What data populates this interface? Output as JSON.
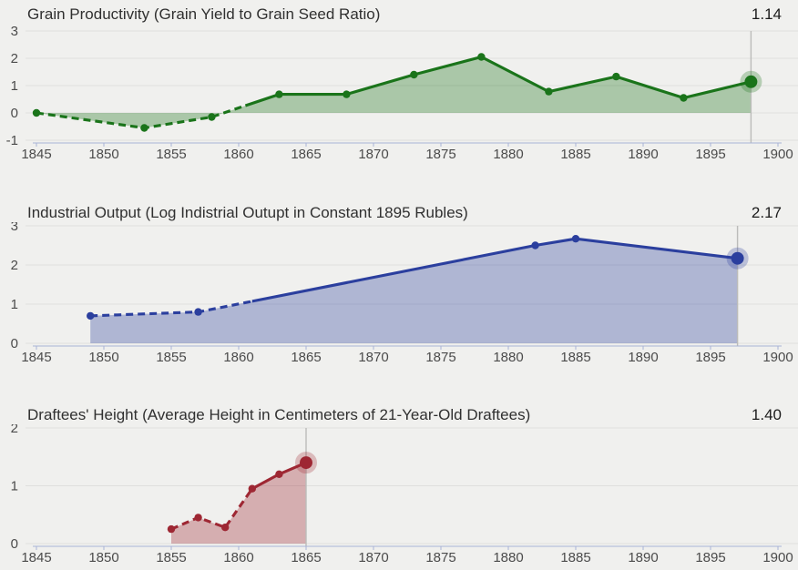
{
  "page": {
    "background": "#f0f0ee",
    "grid_color": "#dfdfdd",
    "axis_color": "#a9b3d6",
    "rule_color": "#bcbcba",
    "title_color": "#303030",
    "tick_label_color": "#4b4b4b"
  },
  "chart_data": [
    {
      "id": "grain",
      "type": "area",
      "title": "Grain Productivity (Grain Yield to Grain Seed Ratio)",
      "current_value_label": "1.14",
      "line_color": "#1a741a",
      "x": [
        1845,
        1853,
        1858,
        1863,
        1868,
        1873,
        1878,
        1883,
        1888,
        1893,
        1898
      ],
      "values": [
        0.0,
        -0.55,
        -0.15,
        0.68,
        0.68,
        1.4,
        2.05,
        0.78,
        1.33,
        0.55,
        1.14
      ],
      "dashed_until_x": 1860.5,
      "highlight_x": 1898,
      "highlight_value": 1.14,
      "xlim": [
        1845,
        1900
      ],
      "ylim": [
        -1,
        3
      ],
      "yticks": [
        3,
        2,
        1,
        0,
        -1
      ],
      "xticks": [
        1845,
        1850,
        1855,
        1860,
        1865,
        1870,
        1875,
        1880,
        1885,
        1890,
        1895,
        1900
      ],
      "grid": true,
      "legend": "none"
    },
    {
      "id": "industry",
      "type": "area",
      "title": "Industrial Output (Log Indistrial Outupt in Constant 1895 Rubles)",
      "current_value_label": "2.17",
      "line_color": "#2b3f9e",
      "x": [
        1849,
        1857,
        1882,
        1885,
        1897
      ],
      "values": [
        0.7,
        0.8,
        2.5,
        2.67,
        2.17
      ],
      "dashed_until_x": 1861,
      "highlight_x": 1897,
      "highlight_value": 2.17,
      "xlim": [
        1845,
        1900
      ],
      "ylim": [
        0,
        3
      ],
      "yticks": [
        3,
        2,
        1,
        0
      ],
      "xticks": [
        1845,
        1850,
        1855,
        1860,
        1865,
        1870,
        1875,
        1880,
        1885,
        1890,
        1895,
        1900
      ],
      "grid": true,
      "legend": "none"
    },
    {
      "id": "height",
      "type": "area",
      "title": "Draftees' Height (Average Height in Centimeters of 21-Year-Old Draftees)",
      "current_value_label": "1.40",
      "line_color": "#9e2733",
      "x": [
        1855,
        1857,
        1859,
        1861,
        1863,
        1865
      ],
      "values": [
        0.25,
        0.45,
        0.28,
        0.95,
        1.2,
        1.4
      ],
      "dashed_until_x": 1861,
      "highlight_x": 1865,
      "highlight_value": 1.4,
      "xlim": [
        1845,
        1900
      ],
      "ylim": [
        0,
        2
      ],
      "yticks": [
        2,
        1,
        0
      ],
      "xticks": [
        1845,
        1850,
        1855,
        1860,
        1865,
        1870,
        1875,
        1880,
        1885,
        1890,
        1895,
        1900
      ],
      "grid": true,
      "legend": "none"
    }
  ]
}
